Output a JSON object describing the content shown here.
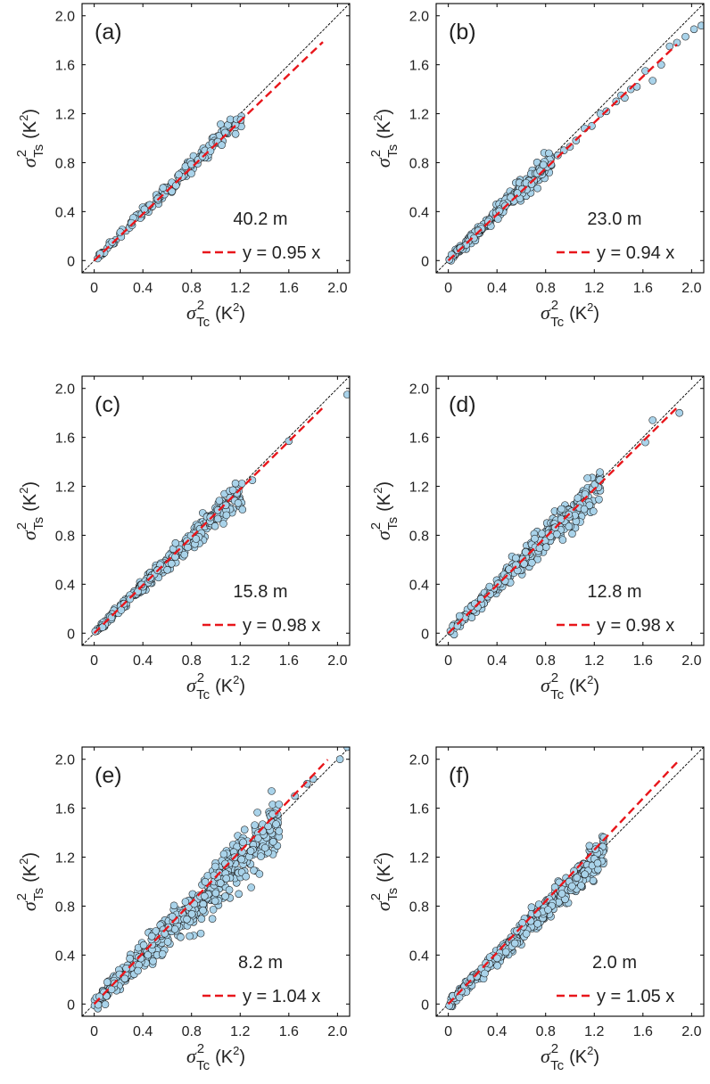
{
  "axis_labels": {
    "x_sigma": "σ",
    "x_sup": "2",
    "x_sub": "Tc",
    "x_unit": "(K",
    "x_unit_sup": "2",
    "x_unit_close": ")",
    "y_sigma": "σ",
    "y_sup": "2",
    "y_sub": "Ts",
    "y_unit": "(K",
    "y_unit_sup": "2",
    "y_unit_close": ")"
  },
  "colors": {
    "points_fill": "#a9d3ea",
    "points_stroke": "#1b1b1b",
    "fit_line": "#e8161b",
    "identity_line": "#000000",
    "frame": "#000000"
  },
  "chart_data": [
    {
      "type": "scatter",
      "panel_label": "(a)",
      "height_label": "40.2 m",
      "fit_label": "y = 0.95 x",
      "slope": 0.95,
      "fit_x_range": [
        0,
        1.88
      ],
      "xlim": [
        -0.1,
        2.1
      ],
      "ylim": [
        -0.1,
        2.1
      ],
      "ticks": [
        0,
        0.4,
        0.8,
        1.2,
        1.6,
        2.0
      ],
      "tick_labels": [
        "0",
        "0.4",
        "0.8",
        "1.2",
        "1.6",
        "2.0"
      ],
      "points": {
        "count": 160,
        "x_max": 1.22,
        "spread": 0.03,
        "seed": 11
      }
    },
    {
      "type": "scatter",
      "panel_label": "(b)",
      "height_label": "23.0 m",
      "fit_label": "y = 0.94 x",
      "slope": 0.94,
      "fit_x_range": [
        0,
        1.88
      ],
      "xlim": [
        -0.1,
        2.1
      ],
      "ylim": [
        -0.1,
        2.1
      ],
      "ticks": [
        0,
        0.4,
        0.8,
        1.2,
        1.6,
        2.0
      ],
      "tick_labels": [
        "0",
        "0.4",
        "0.8",
        "1.2",
        "1.6",
        "2.0"
      ],
      "points": {
        "count": 240,
        "x_max": 0.85,
        "spread": 0.035,
        "seed": 23,
        "extra": [
          [
            0.9,
            0.86
          ],
          [
            0.95,
            0.9
          ],
          [
            1.0,
            0.93
          ],
          [
            1.05,
            0.98
          ],
          [
            1.12,
            1.08
          ],
          [
            1.18,
            1.1
          ],
          [
            1.25,
            1.2
          ],
          [
            1.3,
            1.22
          ],
          [
            1.38,
            1.3
          ],
          [
            1.42,
            1.35
          ],
          [
            1.45,
            1.33
          ],
          [
            1.5,
            1.4
          ],
          [
            1.55,
            1.42
          ],
          [
            1.62,
            1.55
          ],
          [
            1.68,
            1.47
          ],
          [
            1.75,
            1.6
          ],
          [
            1.82,
            1.75
          ],
          [
            1.88,
            1.78
          ],
          [
            1.95,
            1.83
          ],
          [
            2.02,
            1.89
          ],
          [
            2.08,
            1.92
          ]
        ]
      }
    },
    {
      "type": "scatter",
      "panel_label": "(c)",
      "height_label": "15.8 m",
      "fit_label": "y = 0.98 x",
      "slope": 0.98,
      "fit_x_range": [
        0,
        1.88
      ],
      "xlim": [
        -0.1,
        2.1
      ],
      "ylim": [
        -0.1,
        2.1
      ],
      "ticks": [
        0,
        0.4,
        0.8,
        1.2,
        1.6,
        2.0
      ],
      "tick_labels": [
        "0",
        "0.4",
        "0.8",
        "1.2",
        "1.6",
        "2.0"
      ],
      "points": {
        "count": 300,
        "x_max": 1.22,
        "spread": 0.035,
        "seed": 37,
        "extra": [
          [
            1.3,
            1.25
          ],
          [
            1.6,
            1.57
          ],
          [
            2.08,
            1.95
          ]
        ]
      }
    },
    {
      "type": "scatter",
      "panel_label": "(d)",
      "height_label": "12.8 m",
      "fit_label": "y = 0.98 x",
      "slope": 0.98,
      "fit_x_range": [
        0,
        1.88
      ],
      "xlim": [
        -0.1,
        2.1
      ],
      "ylim": [
        -0.1,
        2.1
      ],
      "ticks": [
        0,
        0.4,
        0.8,
        1.2,
        1.6,
        2.0
      ],
      "tick_labels": [
        "0",
        "0.4",
        "0.8",
        "1.2",
        "1.6",
        "2.0"
      ],
      "points": {
        "count": 360,
        "x_max": 1.25,
        "spread": 0.045,
        "seed": 53,
        "extra": [
          [
            1.62,
            1.56
          ],
          [
            1.68,
            1.74
          ],
          [
            1.9,
            1.8
          ]
        ]
      }
    },
    {
      "type": "scatter",
      "panel_label": "(e)",
      "height_label": "8.2 m",
      "fit_label": "y = 1.04 x",
      "slope": 1.04,
      "fit_x_range": [
        0,
        1.92
      ],
      "xlim": [
        -0.1,
        2.1
      ],
      "ylim": [
        -0.1,
        2.1
      ],
      "ticks": [
        0,
        0.4,
        0.8,
        1.2,
        1.6,
        2.0
      ],
      "tick_labels": [
        "0",
        "0.4",
        "0.8",
        "1.2",
        "1.6",
        "2.0"
      ],
      "points": {
        "count": 480,
        "x_max": 1.52,
        "spread": 0.07,
        "seed": 71,
        "extra": [
          [
            1.65,
            1.7
          ],
          [
            1.75,
            1.8
          ],
          [
            1.8,
            1.84
          ],
          [
            2.02,
            2.0
          ],
          [
            2.08,
            2.1
          ]
        ]
      }
    },
    {
      "type": "scatter",
      "panel_label": "(f)",
      "height_label": "2.0 m",
      "fit_label": "y = 1.05 x",
      "slope": 1.05,
      "fit_x_range": [
        0,
        1.9
      ],
      "xlim": [
        -0.1,
        2.1
      ],
      "ylim": [
        -0.1,
        2.1
      ],
      "ticks": [
        0,
        0.4,
        0.8,
        1.2,
        1.6,
        2.0
      ],
      "tick_labels": [
        "0",
        "0.4",
        "0.8",
        "1.2",
        "1.6",
        "2.0"
      ],
      "points": {
        "count": 480,
        "x_max": 1.28,
        "spread": 0.04,
        "seed": 97
      }
    }
  ]
}
